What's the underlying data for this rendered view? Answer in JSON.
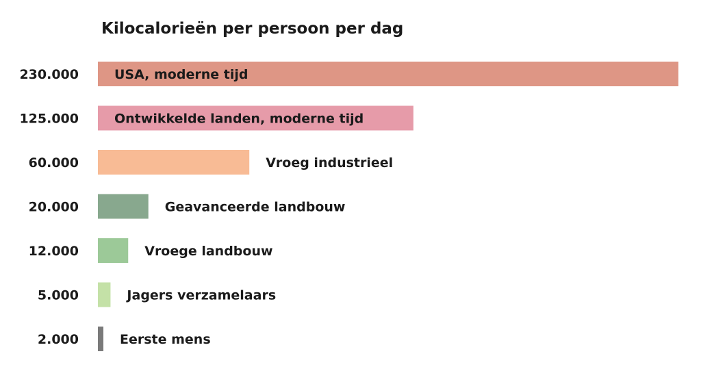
{
  "chart_data": {
    "type": "bar",
    "orientation": "horizontal",
    "title": "Kilocalorieën per persoon per dag",
    "xlabel": "",
    "ylabel": "",
    "grid": false,
    "legend": "none",
    "categories": [
      "USA, moderne tijd",
      "Ontwikkelde landen, moderne tijd",
      "Vroeg industrieel",
      "Geavanceerde landbouw",
      "Vroege landbouw",
      "Jagers verzamelaars",
      "Eerste mens"
    ],
    "values": [
      230000,
      125000,
      60000,
      20000,
      12000,
      5000,
      2000
    ],
    "value_labels": [
      "230.000",
      "125.000",
      "60.000",
      "20.000",
      "12.000",
      "5.000",
      "2.000"
    ],
    "colors": [
      "#de9685",
      "#e69ba9",
      "#f8bb95",
      "#88a88e",
      "#9cc998",
      "#c4e1a7",
      "#7a7a7a"
    ],
    "xlim": [
      0,
      230000
    ]
  }
}
